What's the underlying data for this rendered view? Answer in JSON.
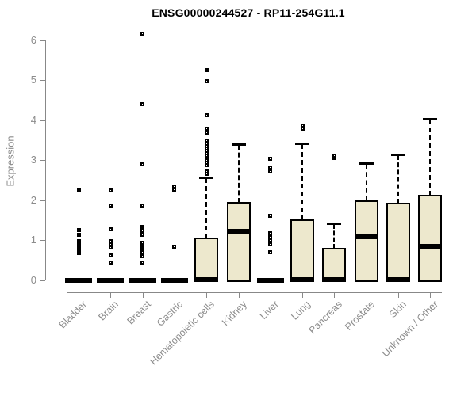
{
  "title": "ENSG00000244527 - RP11-254G11.1",
  "chart_data": {
    "type": "boxplot",
    "title": "ENSG00000244527 - RP11-254G11.1",
    "ylabel": "Expression",
    "xlabel": "",
    "ylim": [
      0,
      6
    ],
    "yticks": [
      0,
      1,
      2,
      3,
      4,
      5,
      6
    ],
    "grid": false,
    "legend": null,
    "categories": [
      "Bladder",
      "Brain",
      "Breast",
      "Gastric",
      "Hematopoietic cells",
      "Kidney",
      "Liver",
      "Lung",
      "Pancreas",
      "Prostate",
      "Skin",
      "Unknown / Other"
    ],
    "groups": [
      {
        "name": "Bladder",
        "q1": 0,
        "median": 0,
        "q3": 0,
        "whisker_low": 0,
        "whisker_high": 0,
        "outliers": [
          2.25,
          1.26,
          1.14,
          0.97,
          0.9,
          0.84,
          0.76,
          0.69
        ]
      },
      {
        "name": "Brain",
        "q1": 0,
        "median": 0,
        "q3": 0,
        "whisker_low": 0,
        "whisker_high": 0,
        "outliers": [
          2.25,
          1.86,
          1.27,
          0.97,
          0.9,
          0.82,
          0.63,
          0.44
        ]
      },
      {
        "name": "Breast",
        "q1": 0,
        "median": 0,
        "q3": 0,
        "whisker_low": 0,
        "whisker_high": 0,
        "outliers": [
          6.15,
          4.4,
          2.9,
          1.86,
          1.33,
          1.23,
          1.13,
          0.93,
          0.86,
          0.79,
          0.71,
          0.61,
          0.45
        ]
      },
      {
        "name": "Gastric",
        "q1": 0,
        "median": 0,
        "q3": 0,
        "whisker_low": 0,
        "whisker_high": 0,
        "outliers": [
          2.35,
          2.27,
          0.85
        ]
      },
      {
        "name": "Hematopoietic cells",
        "q1": 0,
        "median": 0,
        "q3": 1.04,
        "whisker_low": 0,
        "whisker_high": 2.57,
        "outliers": [
          5.25,
          4.97,
          4.13,
          3.78,
          3.68,
          3.49,
          3.41,
          3.35,
          3.29,
          3.23,
          3.17,
          3.11,
          3.05,
          2.99,
          2.93,
          2.87,
          2.72,
          2.65
        ]
      },
      {
        "name": "Kidney",
        "q1": 0,
        "median": 1.23,
        "q3": 1.93,
        "whisker_low": 0,
        "whisker_high": 3.41,
        "outliers": []
      },
      {
        "name": "Liver",
        "q1": 0,
        "median": 0,
        "q3": 0,
        "whisker_low": 0,
        "whisker_high": 0,
        "outliers": [
          3.04,
          2.81,
          2.72,
          1.61,
          1.17,
          1.08,
          0.99,
          0.9,
          0.71
        ]
      },
      {
        "name": "Lung",
        "q1": 0,
        "median": 0,
        "q3": 1.5,
        "whisker_low": 0,
        "whisker_high": 3.43,
        "outliers": [
          3.87,
          3.78
        ]
      },
      {
        "name": "Pancreas",
        "q1": 0,
        "median": 0,
        "q3": 0.79,
        "whisker_low": 0,
        "whisker_high": 1.42,
        "outliers": [
          3.12,
          3.05
        ]
      },
      {
        "name": "Prostate",
        "q1": 0,
        "median": 1.09,
        "q3": 1.97,
        "whisker_low": 0,
        "whisker_high": 2.92,
        "outliers": []
      },
      {
        "name": "Skin",
        "q1": 0,
        "median": 0,
        "q3": 1.92,
        "whisker_low": 0,
        "whisker_high": 3.15,
        "outliers": []
      },
      {
        "name": "Unknown / Other",
        "q1": 0,
        "median": 0.86,
        "q3": 2.12,
        "whisker_low": 0,
        "whisker_high": 4.03,
        "outliers": []
      }
    ]
  },
  "style": {
    "box_fill": "#EDE8CD",
    "box_border": "#000000",
    "axis_color": "#888888",
    "tick_label_color": "#8c8c8c",
    "title_color": "#000000",
    "background": "#ffffff"
  }
}
